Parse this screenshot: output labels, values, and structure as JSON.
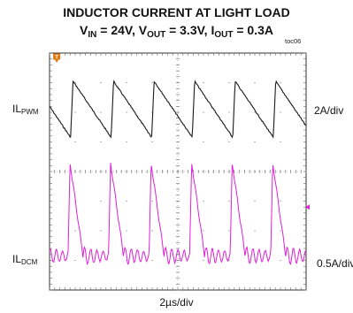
{
  "chart_data": {
    "type": "line",
    "title": "INDUCTOR CURRENT AT LIGHT LOAD",
    "subtitle": {
      "vin_sym": "V",
      "vin_sub": "IN",
      "vin_val": " = 24V, ",
      "vout_sym": "V",
      "vout_sub": "OUT",
      "vout_val": " = 3.3V, ",
      "iout_sym": "I",
      "iout_sub": "OUT",
      "iout_val": " = 0.3A"
    },
    "figure_tag": "toc06",
    "xlabel": "2µs/div",
    "grid": true,
    "divisions": {
      "x": 10,
      "y": 8
    },
    "trigger_marker": "T",
    "series": [
      {
        "name_sym": "IL",
        "name_sub": "PWM",
        "scale": "2A/div",
        "color": "#1a1a1a",
        "period_div": 1.58,
        "phase_div": 0.82,
        "peak_div": 1.95,
        "valley_div": 0.05
      },
      {
        "name_sym": "IL",
        "name_sub": "DCM",
        "scale": "0.5A/div",
        "color": "#e020d8",
        "period_div": 1.58,
        "phase_div": 0.72,
        "peak_div": 3.15,
        "valley_div": 0.0,
        "ringing_div": 0.3
      }
    ]
  }
}
